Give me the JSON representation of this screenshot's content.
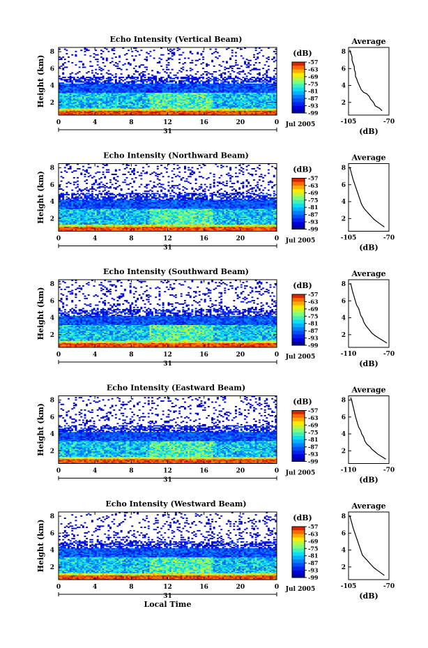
{
  "figure": {
    "xlabel": "Local Time",
    "date_label": "Jul 2005",
    "day_label": "31",
    "ylabel": "Height (km)",
    "avg_title": "Average",
    "avg_xlabel": "(dB)",
    "colorbar_unit": "(dB)"
  },
  "chart_data": [
    {
      "type": "heatmap",
      "title": "Echo Intensity (Vertical Beam)",
      "xlabel": "",
      "ylabel": "Height (km)",
      "x_ticks": [
        "0",
        "4",
        "8",
        "12",
        "16",
        "20",
        "0"
      ],
      "xlim": [
        0,
        24
      ],
      "y_ticks": [
        "2",
        "4",
        "6",
        "8"
      ],
      "ylim": [
        0.5,
        8.5
      ],
      "colorbar": {
        "label": "(dB)",
        "ticks": [
          "-57",
          "-63",
          "-69",
          "-75",
          "-81",
          "-87",
          "-93",
          "-99"
        ],
        "range": [
          -99,
          -57
        ]
      },
      "average_profile": {
        "title": "Average",
        "xlabel": "(dB)",
        "x_ticks": [
          "-105",
          "-70"
        ],
        "xlim": [
          -105,
          -70
        ],
        "y_ticks": [
          "2",
          "4",
          "6",
          "8"
        ],
        "points": [
          [
            -76,
            1.0
          ],
          [
            -78,
            1.3
          ],
          [
            -82,
            1.6
          ],
          [
            -83,
            1.9
          ],
          [
            -84,
            2.1
          ],
          [
            -86,
            2.4
          ],
          [
            -87,
            2.7
          ],
          [
            -89,
            3.0
          ],
          [
            -92,
            3.2
          ],
          [
            -94,
            3.5
          ],
          [
            -95,
            3.8
          ],
          [
            -96,
            4.1
          ],
          [
            -97,
            4.4
          ],
          [
            -98,
            4.8
          ],
          [
            -99,
            5.1
          ],
          [
            -99,
            5.5
          ],
          [
            -100,
            5.9
          ],
          [
            -100,
            6.2
          ],
          [
            -101,
            6.6
          ],
          [
            -102,
            7.0
          ],
          [
            -102,
            7.4
          ],
          [
            -103,
            7.8
          ],
          [
            -104,
            8.2
          ]
        ]
      },
      "day": "31",
      "date": "Jul 2005"
    },
    {
      "type": "heatmap",
      "title": "Echo Intensity (Northward Beam)",
      "xlabel": "",
      "ylabel": "Height (km)",
      "x_ticks": [
        "0",
        "4",
        "8",
        "12",
        "16",
        "20",
        "0"
      ],
      "xlim": [
        0,
        24
      ],
      "y_ticks": [
        "2",
        "4",
        "6",
        "8"
      ],
      "ylim": [
        0.5,
        8.5
      ],
      "colorbar": {
        "label": "(dB)",
        "ticks": [
          "-57",
          "-63",
          "-69",
          "-75",
          "-81",
          "-87",
          "-93",
          "-99"
        ],
        "range": [
          -99,
          -57
        ]
      },
      "average_profile": {
        "title": "Average",
        "xlabel": "(dB)",
        "x_ticks": [
          "-105",
          "-70"
        ],
        "xlim": [
          -105,
          -70
        ],
        "y_ticks": [
          "2",
          "4",
          "6",
          "8"
        ],
        "points": [
          [
            -74,
            1.0
          ],
          [
            -77,
            1.3
          ],
          [
            -80,
            1.6
          ],
          [
            -83,
            1.9
          ],
          [
            -85,
            2.2
          ],
          [
            -87,
            2.5
          ],
          [
            -89,
            2.8
          ],
          [
            -91,
            3.1
          ],
          [
            -93,
            3.5
          ],
          [
            -94,
            3.8
          ],
          [
            -95,
            4.2
          ],
          [
            -96,
            4.6
          ],
          [
            -97,
            5.0
          ],
          [
            -98,
            5.4
          ],
          [
            -99,
            5.8
          ],
          [
            -100,
            6.2
          ],
          [
            -101,
            6.6
          ],
          [
            -102,
            7.1
          ],
          [
            -103,
            7.6
          ],
          [
            -104,
            8.1
          ]
        ]
      },
      "day": "31",
      "date": "Jul 2005"
    },
    {
      "type": "heatmap",
      "title": "Echo Intensity (Southward Beam)",
      "xlabel": "",
      "ylabel": "Height (km)",
      "x_ticks": [
        "0",
        "4",
        "8",
        "12",
        "16",
        "20",
        "0"
      ],
      "xlim": [
        0,
        24
      ],
      "y_ticks": [
        "2",
        "4",
        "6",
        "8"
      ],
      "ylim": [
        0.5,
        8.5
      ],
      "colorbar": {
        "label": "(dB)",
        "ticks": [
          "-57",
          "-63",
          "-69",
          "-75",
          "-81",
          "-87",
          "-93",
          "-99"
        ],
        "range": [
          -99,
          -57
        ]
      },
      "average_profile": {
        "title": "Average",
        "xlabel": "(dB)",
        "x_ticks": [
          "-110",
          "-70"
        ],
        "xlim": [
          -110,
          -70
        ],
        "y_ticks": [
          "2",
          "4",
          "6",
          "8"
        ],
        "points": [
          [
            -72,
            1.0
          ],
          [
            -76,
            1.3
          ],
          [
            -80,
            1.6
          ],
          [
            -84,
            1.9
          ],
          [
            -87,
            2.2
          ],
          [
            -89,
            2.5
          ],
          [
            -91,
            2.8
          ],
          [
            -93,
            3.1
          ],
          [
            -95,
            3.5
          ],
          [
            -96,
            3.9
          ],
          [
            -98,
            4.3
          ],
          [
            -99,
            4.7
          ],
          [
            -100,
            5.1
          ],
          [
            -102,
            5.5
          ],
          [
            -103,
            5.9
          ],
          [
            -104,
            6.3
          ],
          [
            -105,
            6.7
          ],
          [
            -106,
            7.1
          ],
          [
            -107,
            7.6
          ],
          [
            -108,
            8.1
          ]
        ]
      },
      "day": "31",
      "date": "Jul 2005"
    },
    {
      "type": "heatmap",
      "title": "Echo Intensity (Eastward Beam)",
      "xlabel": "",
      "ylabel": "Height (km)",
      "x_ticks": [
        "0",
        "4",
        "8",
        "12",
        "16",
        "20",
        "0"
      ],
      "xlim": [
        0,
        24
      ],
      "y_ticks": [
        "2",
        "4",
        "6",
        "8"
      ],
      "ylim": [
        0.5,
        8.5
      ],
      "colorbar": {
        "label": "(dB)",
        "ticks": [
          "-57",
          "-63",
          "-69",
          "-75",
          "-81",
          "-87",
          "-93",
          "-99"
        ],
        "range": [
          -99,
          -57
        ]
      },
      "average_profile": {
        "title": "Average",
        "xlabel": "(dB)",
        "x_ticks": [
          "-110",
          "-70"
        ],
        "xlim": [
          -110,
          -70
        ],
        "y_ticks": [
          "2",
          "4",
          "6",
          "8"
        ],
        "points": [
          [
            -73,
            1.0
          ],
          [
            -77,
            1.3
          ],
          [
            -81,
            1.6
          ],
          [
            -84,
            1.9
          ],
          [
            -87,
            2.2
          ],
          [
            -89,
            2.5
          ],
          [
            -92,
            2.8
          ],
          [
            -94,
            3.2
          ],
          [
            -95,
            3.6
          ],
          [
            -97,
            4.0
          ],
          [
            -98,
            4.4
          ],
          [
            -100,
            4.8
          ],
          [
            -101,
            5.2
          ],
          [
            -102,
            5.6
          ],
          [
            -103,
            6.0
          ],
          [
            -104,
            6.5
          ],
          [
            -105,
            7.0
          ],
          [
            -106,
            7.5
          ],
          [
            -107,
            8.0
          ],
          [
            -108,
            8.3
          ]
        ]
      },
      "day": "31",
      "date": "Jul 2005"
    },
    {
      "type": "heatmap",
      "title": "Echo Intensity (Westward Beam)",
      "xlabel": "Local Time",
      "ylabel": "Height (km)",
      "x_ticks": [
        "0",
        "4",
        "8",
        "12",
        "16",
        "20",
        "0"
      ],
      "xlim": [
        0,
        24
      ],
      "y_ticks": [
        "2",
        "4",
        "6",
        "8"
      ],
      "ylim": [
        0.5,
        8.5
      ],
      "colorbar": {
        "label": "(dB)",
        "ticks": [
          "-57",
          "-63",
          "-69",
          "-75",
          "-81",
          "-87",
          "-93",
          "-99"
        ],
        "range": [
          -99,
          -57
        ]
      },
      "average_profile": {
        "title": "Average",
        "xlabel": "(dB)",
        "x_ticks": [
          "-105",
          "-70"
        ],
        "xlim": [
          -105,
          -70
        ],
        "y_ticks": [
          "2",
          "4",
          "6",
          "8"
        ],
        "points": [
          [
            -74,
            1.0
          ],
          [
            -77,
            1.3
          ],
          [
            -80,
            1.6
          ],
          [
            -83,
            1.9
          ],
          [
            -85,
            2.2
          ],
          [
            -87,
            2.5
          ],
          [
            -89,
            2.8
          ],
          [
            -91,
            3.1
          ],
          [
            -93,
            3.4
          ],
          [
            -94,
            3.8
          ],
          [
            -95,
            4.2
          ],
          [
            -96,
            4.6
          ],
          [
            -97,
            5.0
          ],
          [
            -98,
            5.4
          ],
          [
            -99,
            5.8
          ],
          [
            -100,
            6.2
          ],
          [
            -101,
            6.6
          ],
          [
            -102,
            7.1
          ],
          [
            -103,
            7.6
          ],
          [
            -104,
            8.1
          ]
        ]
      },
      "day": "31",
      "date": "Jul 2005"
    }
  ]
}
